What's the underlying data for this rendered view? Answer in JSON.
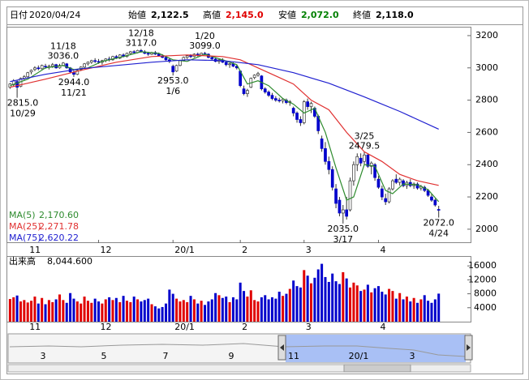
{
  "chart_data": {
    "type": "candlestick",
    "header": {
      "date_label": "日付",
      "date": "2020/04/24",
      "items": [
        {
          "name": "始値",
          "color": "#000000",
          "value": {
            "value": 2122.5,
            "label": "2,122.5"
          }
        },
        {
          "name": "高値",
          "color": "#e00000",
          "value": {
            "value": 2145.0,
            "label": "2,145.0"
          }
        },
        {
          "name": "安値",
          "color": "#008000",
          "value": {
            "value": 2072.0,
            "label": "2,072.0"
          }
        },
        {
          "name": "終値",
          "color": "#000000",
          "value": {
            "value": 2118.0,
            "label": "2,118.0"
          }
        }
      ]
    },
    "up_color": "#e00000",
    "down_color": "#0000cc",
    "xlim": [
      -1,
      130
    ],
    "xticks": [
      {
        "value": 5,
        "label": "11"
      },
      {
        "value": 25,
        "label": "12"
      },
      {
        "value": 46,
        "label": "20/1"
      },
      {
        "value": 65,
        "label": "2"
      },
      {
        "value": 83,
        "label": "3"
      },
      {
        "value": 104,
        "label": "4"
      }
    ],
    "ylim": [
      1914,
      3250
    ],
    "yticks": [
      2000,
      2200,
      2400,
      2600,
      2800,
      3000,
      3200
    ],
    "ohlc": [
      [
        2880,
        2905,
        2870,
        2900
      ],
      [
        2895,
        2930,
        2885,
        2920
      ],
      [
        2915,
        2925,
        2815,
        2880
      ],
      [
        2885,
        2940,
        2880,
        2935
      ],
      [
        2935,
        2955,
        2925,
        2945
      ],
      [
        2945,
        2975,
        2940,
        2970
      ],
      [
        2975,
        2990,
        2960,
        2985
      ],
      [
        2990,
        3010,
        2980,
        3000
      ],
      [
        3000,
        3015,
        2985,
        2995
      ],
      [
        2995,
        3020,
        2990,
        3015
      ],
      [
        3010,
        3025,
        2995,
        3005
      ],
      [
        3005,
        3020,
        2990,
        3010
      ],
      [
        3010,
        3030,
        3000,
        3020
      ],
      [
        3020,
        3025,
        2995,
        3000
      ],
      [
        3000,
        3025,
        2995,
        3015
      ],
      [
        3015,
        3036,
        3010,
        3030
      ],
      [
        3025,
        3030,
        2995,
        3000
      ],
      [
        3000,
        3005,
        2970,
        2975
      ],
      [
        2970,
        2985,
        2944,
        2960
      ],
      [
        2960,
        2990,
        2955,
        2985
      ],
      [
        2990,
        3010,
        2980,
        3005
      ],
      [
        3005,
        3030,
        3000,
        3025
      ],
      [
        3025,
        3040,
        3015,
        3035
      ],
      [
        3035,
        3050,
        3025,
        3045
      ],
      [
        3045,
        3060,
        3030,
        3040
      ],
      [
        3040,
        3055,
        3025,
        3035
      ],
      [
        3035,
        3050,
        3020,
        3045
      ],
      [
        3045,
        3060,
        3035,
        3055
      ],
      [
        3055,
        3070,
        3040,
        3050
      ],
      [
        3050,
        3075,
        3045,
        3070
      ],
      [
        3070,
        3080,
        3055,
        3060
      ],
      [
        3060,
        3085,
        3055,
        3080
      ],
      [
        3080,
        3090,
        3065,
        3070
      ],
      [
        3070,
        3095,
        3065,
        3090
      ],
      [
        3090,
        3105,
        3080,
        3100
      ],
      [
        3100,
        3110,
        3090,
        3095
      ],
      [
        3095,
        3112,
        3090,
        3108
      ],
      [
        3108,
        3117,
        3095,
        3100
      ],
      [
        3100,
        3110,
        3085,
        3090
      ],
      [
        3090,
        3100,
        3075,
        3085
      ],
      [
        3085,
        3100,
        3080,
        3095
      ],
      [
        3095,
        3105,
        3080,
        3085
      ],
      [
        3085,
        3095,
        3070,
        3075
      ],
      [
        3075,
        3085,
        3060,
        3065
      ],
      [
        3065,
        3075,
        3045,
        3050
      ],
      [
        3050,
        3060,
        3030,
        3040
      ],
      [
        3010,
        3020,
        2953,
        2975
      ],
      [
        2980,
        3020,
        2975,
        3015
      ],
      [
        3015,
        3050,
        3010,
        3045
      ],
      [
        3045,
        3070,
        3040,
        3065
      ],
      [
        3065,
        3080,
        3055,
        3075
      ],
      [
        3075,
        3085,
        3060,
        3070
      ],
      [
        3070,
        3090,
        3065,
        3085
      ],
      [
        3085,
        3095,
        3070,
        3080
      ],
      [
        3080,
        3095,
        3075,
        3090
      ],
      [
        3090,
        3099,
        3080,
        3085
      ],
      [
        3085,
        3090,
        3060,
        3065
      ],
      [
        3065,
        3075,
        3045,
        3055
      ],
      [
        3055,
        3065,
        3035,
        3040
      ],
      [
        3040,
        3055,
        3025,
        3050
      ],
      [
        3050,
        3060,
        3030,
        3035
      ],
      [
        3035,
        3045,
        3010,
        3020
      ],
      [
        3020,
        3030,
        3000,
        3025
      ],
      [
        3025,
        3035,
        3005,
        3010
      ],
      [
        3010,
        3020,
        2990,
        3000
      ],
      [
        2980,
        2985,
        2880,
        2890
      ],
      [
        2870,
        2890,
        2830,
        2840
      ],
      [
        2840,
        2870,
        2820,
        2860
      ],
      [
        2880,
        2940,
        2875,
        2935
      ],
      [
        2940,
        2960,
        2930,
        2955
      ],
      [
        2955,
        2975,
        2945,
        2965
      ],
      [
        2950,
        2955,
        2860,
        2870
      ],
      [
        2870,
        2880,
        2840,
        2850
      ],
      [
        2850,
        2860,
        2820,
        2830
      ],
      [
        2830,
        2845,
        2800,
        2810
      ],
      [
        2810,
        2825,
        2790,
        2800
      ],
      [
        2800,
        2815,
        2785,
        2795
      ],
      [
        2795,
        2810,
        2780,
        2805
      ],
      [
        2800,
        2810,
        2775,
        2785
      ],
      [
        2785,
        2800,
        2765,
        2790
      ],
      [
        2750,
        2760,
        2700,
        2720
      ],
      [
        2720,
        2730,
        2660,
        2680
      ],
      [
        2680,
        2700,
        2640,
        2660
      ],
      [
        2660,
        2800,
        2650,
        2790
      ],
      [
        2790,
        2810,
        2740,
        2760
      ],
      [
        2760,
        2790,
        2720,
        2780
      ],
      [
        2750,
        2760,
        2690,
        2700
      ],
      [
        2700,
        2710,
        2590,
        2610
      ],
      [
        2560,
        2580,
        2480,
        2500
      ],
      [
        2500,
        2540,
        2400,
        2420
      ],
      [
        2420,
        2450,
        2340,
        2370
      ],
      [
        2370,
        2390,
        2240,
        2260
      ],
      [
        2250,
        2280,
        2130,
        2160
      ],
      [
        2180,
        2200,
        2080,
        2100
      ],
      [
        2100,
        2150,
        2035,
        2120
      ],
      [
        2120,
        2200,
        2060,
        2080
      ],
      [
        2120,
        2320,
        2110,
        2300
      ],
      [
        2300,
        2420,
        2270,
        2400
      ],
      [
        2400,
        2470,
        2360,
        2450
      ],
      [
        2440,
        2470,
        2390,
        2410
      ],
      [
        2420,
        2479.5,
        2400,
        2460
      ],
      [
        2460,
        2470,
        2380,
        2390
      ],
      [
        2390,
        2420,
        2340,
        2410
      ],
      [
        2400,
        2410,
        2300,
        2320
      ],
      [
        2310,
        2330,
        2250,
        2260
      ],
      [
        2250,
        2270,
        2180,
        2200
      ],
      [
        2190,
        2220,
        2150,
        2170
      ],
      [
        2170,
        2260,
        2160,
        2250
      ],
      [
        2250,
        2310,
        2240,
        2300
      ],
      [
        2310,
        2340,
        2280,
        2290
      ],
      [
        2290,
        2320,
        2270,
        2310
      ],
      [
        2300,
        2310,
        2260,
        2270
      ],
      [
        2270,
        2300,
        2250,
        2290
      ],
      [
        2290,
        2310,
        2260,
        2270
      ],
      [
        2270,
        2290,
        2250,
        2280
      ],
      [
        2280,
        2290,
        2245,
        2255
      ],
      [
        2255,
        2275,
        2240,
        2265
      ],
      [
        2260,
        2270,
        2230,
        2240
      ],
      [
        2240,
        2250,
        2200,
        2210
      ],
      [
        2200,
        2220,
        2170,
        2180
      ],
      [
        2180,
        2190,
        2140,
        2150
      ],
      [
        2122.5,
        2145,
        2072,
        2118
      ]
    ],
    "series": [
      {
        "name": "MA(5)",
        "color": "#2e8b2e",
        "latest": {
          "value": 2170.6,
          "label": "2,170.60"
        },
        "x": [
          0,
          5,
          10,
          15,
          18,
          22,
          26,
          32,
          37,
          42,
          46,
          50,
          55,
          60,
          64,
          67,
          70,
          73,
          77,
          80,
          83,
          86,
          89,
          92,
          95,
          97,
          100,
          103,
          106,
          108,
          111,
          115,
          118,
          121
        ],
        "values": [
          2890,
          2930,
          3000,
          3015,
          2990,
          3000,
          3040,
          3070,
          3100,
          3090,
          3050,
          3040,
          3085,
          3050,
          3020,
          2900,
          2920,
          2890,
          2810,
          2775,
          2720,
          2750,
          2600,
          2380,
          2180,
          2200,
          2400,
          2390,
          2240,
          2220,
          2280,
          2275,
          2245,
          2170.6
        ]
      },
      {
        "name": "MA(25)",
        "color": "#e03030",
        "latest": {
          "value": 2271.78,
          "label": "2,271.78"
        },
        "x": [
          0,
          10,
          20,
          30,
          40,
          50,
          60,
          65,
          70,
          75,
          80,
          85,
          90,
          95,
          100,
          105,
          110,
          115,
          121
        ],
        "values": [
          2880,
          2930,
          2985,
          3035,
          3070,
          3080,
          3070,
          3050,
          3000,
          2950,
          2900,
          2800,
          2740,
          2600,
          2480,
          2420,
          2340,
          2300,
          2271.78
        ]
      },
      {
        "name": "MA(75)",
        "color": "#2020d0",
        "latest": {
          "value": 2620.22,
          "label": "2,620.22"
        },
        "x": [
          0,
          10,
          20,
          30,
          40,
          50,
          60,
          70,
          80,
          90,
          100,
          110,
          121
        ],
        "values": [
          2915,
          2960,
          2995,
          3015,
          3035,
          3050,
          3045,
          3020,
          2970,
          2905,
          2820,
          2730,
          2620.22
        ]
      }
    ],
    "annotations": [
      {
        "x": 2,
        "side": "low",
        "price": {
          "value": 2815,
          "label": "2815.0"
        },
        "date": "10/29"
      },
      {
        "x": 15,
        "side": "high",
        "price": {
          "value": 3036,
          "label": "3036.0"
        },
        "date": "11/18"
      },
      {
        "x": 18,
        "side": "low",
        "price": {
          "value": 2944,
          "label": "2944.0"
        },
        "date": "11/21"
      },
      {
        "x": 37,
        "side": "high",
        "price": {
          "value": 3117,
          "label": "3117.0"
        },
        "date": "12/18"
      },
      {
        "x": 46,
        "side": "low",
        "price": {
          "value": 2953,
          "label": "2953.0"
        },
        "date": "1/6"
      },
      {
        "x": 55,
        "side": "high",
        "price": {
          "value": 3099,
          "label": "3099.0"
        },
        "date": "1/20"
      },
      {
        "x": 94,
        "side": "low",
        "price": {
          "value": 2035,
          "label": "2035.0"
        },
        "date": "3/17"
      },
      {
        "x": 100,
        "side": "high",
        "price": {
          "value": 2479.5,
          "label": "2479.5"
        },
        "date": "3/25"
      },
      {
        "x": 121,
        "side": "low",
        "price": {
          "value": 2072,
          "label": "2072.0"
        },
        "date": "4/24"
      }
    ],
    "volume": {
      "name": "出来高",
      "latest": {
        "value": 8044.6,
        "label": "8,044.600"
      },
      "ylim": [
        0,
        18600
      ],
      "yticks": [
        4000,
        8000,
        12000,
        16000
      ],
      "values": [
        6500,
        7000,
        7500,
        5800,
        6200,
        5500,
        6000,
        7200,
        5200,
        6800,
        5000,
        6200,
        5600,
        6400,
        7800,
        6200,
        5400,
        8200,
        6600,
        5800,
        5200,
        7200,
        6000,
        5400,
        6600,
        5800,
        5200,
        6400,
        7000,
        6200,
        6800,
        5600,
        7400,
        6000,
        5600,
        7200,
        6400,
        5800,
        6200,
        6600,
        5000,
        4400,
        3800,
        4200,
        5200,
        9200,
        8000,
        6600,
        5800,
        6200,
        5600,
        7400,
        6400,
        5200,
        6000,
        4800,
        5800,
        6400,
        8200,
        7600,
        6800,
        7200,
        5600,
        7000,
        6400,
        11200,
        8800,
        7200,
        9000,
        6200,
        5800,
        7000,
        7600,
        6400,
        7000,
        6600,
        8600,
        7400,
        8000,
        9400,
        11800,
        10200,
        9800,
        14800,
        13200,
        11000,
        12600,
        15000,
        16600,
        12800,
        11400,
        13800,
        11600,
        10800,
        14200,
        12400,
        9800,
        11200,
        10400,
        8800,
        9200,
        10600,
        8400,
        9600,
        10200,
        8600,
        7800,
        9400,
        8800,
        6600,
        8200,
        6400,
        7200,
        5800,
        6800,
        5400,
        6400,
        7600,
        6000,
        5400,
        6400,
        8044.6
      ]
    },
    "navigator": {
      "labels": [
        "3",
        "5",
        "7",
        "9",
        "11",
        "20/1",
        "3"
      ]
    }
  }
}
